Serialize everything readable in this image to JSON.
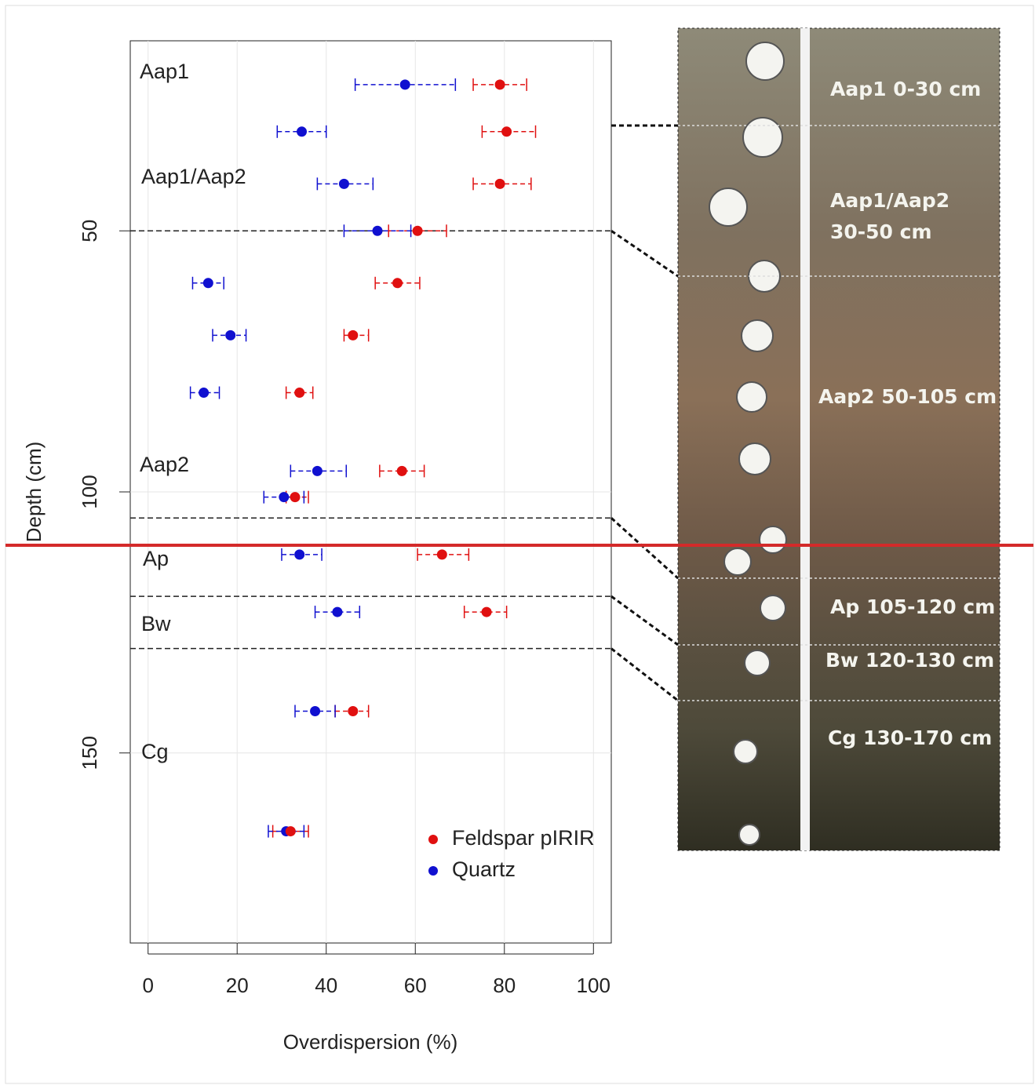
{
  "chart_data": {
    "type": "scatter",
    "x_label": "Overdispersion (%)",
    "y_label": "Depth (cm)",
    "xlim": [
      -4,
      104
    ],
    "ylim": [
      186.4,
      13.6
    ],
    "xticks": [
      0,
      20,
      40,
      60,
      80,
      100
    ],
    "yticks": [
      50,
      100,
      150
    ],
    "grid": true,
    "legend": "bottom-right",
    "depth": [
      22,
      31,
      41,
      50,
      60,
      70,
      81,
      96,
      101,
      112,
      123,
      142,
      165
    ],
    "series": [
      {
        "name": "Feldspar pIRIR",
        "color": "#e01010",
        "values": [
          79,
          80.5,
          79,
          60.5,
          56,
          46,
          34,
          57,
          33,
          66,
          76,
          46,
          32
        ],
        "lower": [
          73,
          75,
          73,
          54,
          51,
          44,
          31,
          52,
          31,
          60.5,
          71,
          42,
          28
        ],
        "upper": [
          85,
          87,
          86,
          67,
          61,
          49.5,
          37,
          62,
          36,
          72,
          80.5,
          49.5,
          36
        ]
      },
      {
        "name": "Quartz",
        "color": "#1010d0",
        "values": [
          57.7,
          34.5,
          44,
          51.5,
          13.5,
          18.5,
          12.5,
          38,
          30.5,
          34,
          42.5,
          37.5,
          31
        ],
        "lower": [
          46.5,
          29,
          38,
          44,
          10,
          14.5,
          9.5,
          32,
          26,
          30,
          37.5,
          33,
          27
        ],
        "upper": [
          69,
          40,
          50.5,
          59,
          17,
          22,
          16,
          44.5,
          35,
          39,
          47.5,
          42,
          35
        ]
      }
    ],
    "boundaries": [
      50,
      105,
      120,
      130
    ],
    "annotations": [
      "Aap1",
      "Aap1/Aap2",
      "Aap2",
      "Ap",
      "Bw",
      "Cg"
    ],
    "photo_labels": [
      "Aap1  0-30 cm",
      "Aap1/Aap2",
      "30-50 cm",
      "Aap2  50-105 cm",
      "Ap  105-120 cm",
      "Bw  120-130 cm",
      "Cg  130-170 cm"
    ]
  }
}
